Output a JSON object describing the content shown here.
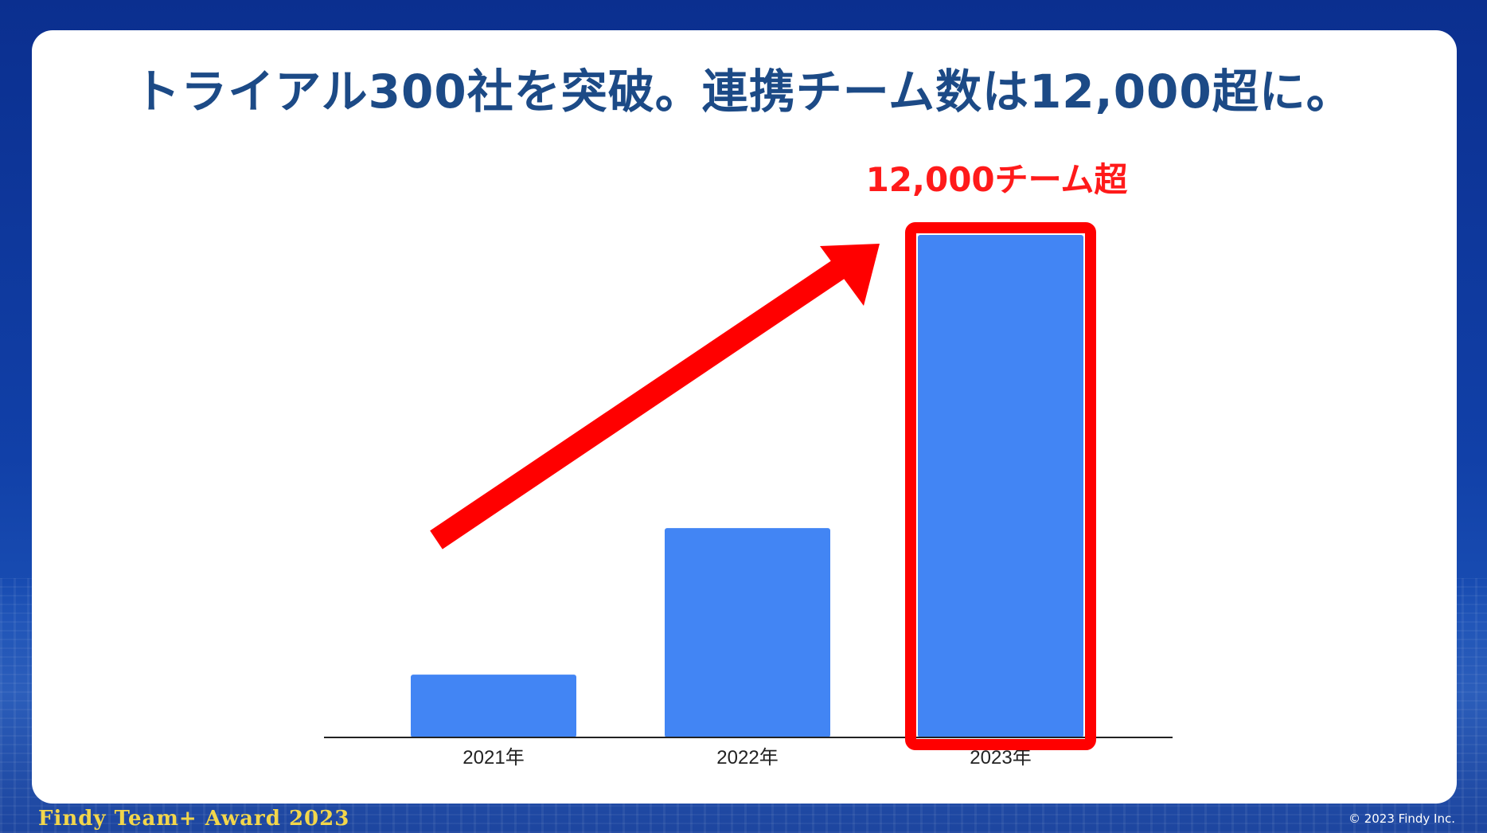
{
  "slide": {
    "title": "トライアル300社を突破。連携チーム数は12,000超に。",
    "annotation": "12,000チーム超",
    "footer_left": "Findy Team+ Award 2023",
    "footer_right": "© 2023 Findy Inc."
  },
  "colors": {
    "title": "#1c4a86",
    "bar": "#4285f4",
    "highlight": "#ff0000",
    "background": "#0b2f8f",
    "footer_brand": "#f2d64b"
  },
  "chart_data": {
    "type": "bar",
    "categories": [
      "2021年",
      "2022年",
      "2023年"
    ],
    "values": [
      1500,
      5000,
      12000
    ],
    "title": "",
    "xlabel": "",
    "ylabel": "",
    "ylim": [
      0,
      12000
    ],
    "grid": false,
    "legend": "none",
    "highlighted_category": "2023年",
    "annotation": "12,000チーム超"
  }
}
